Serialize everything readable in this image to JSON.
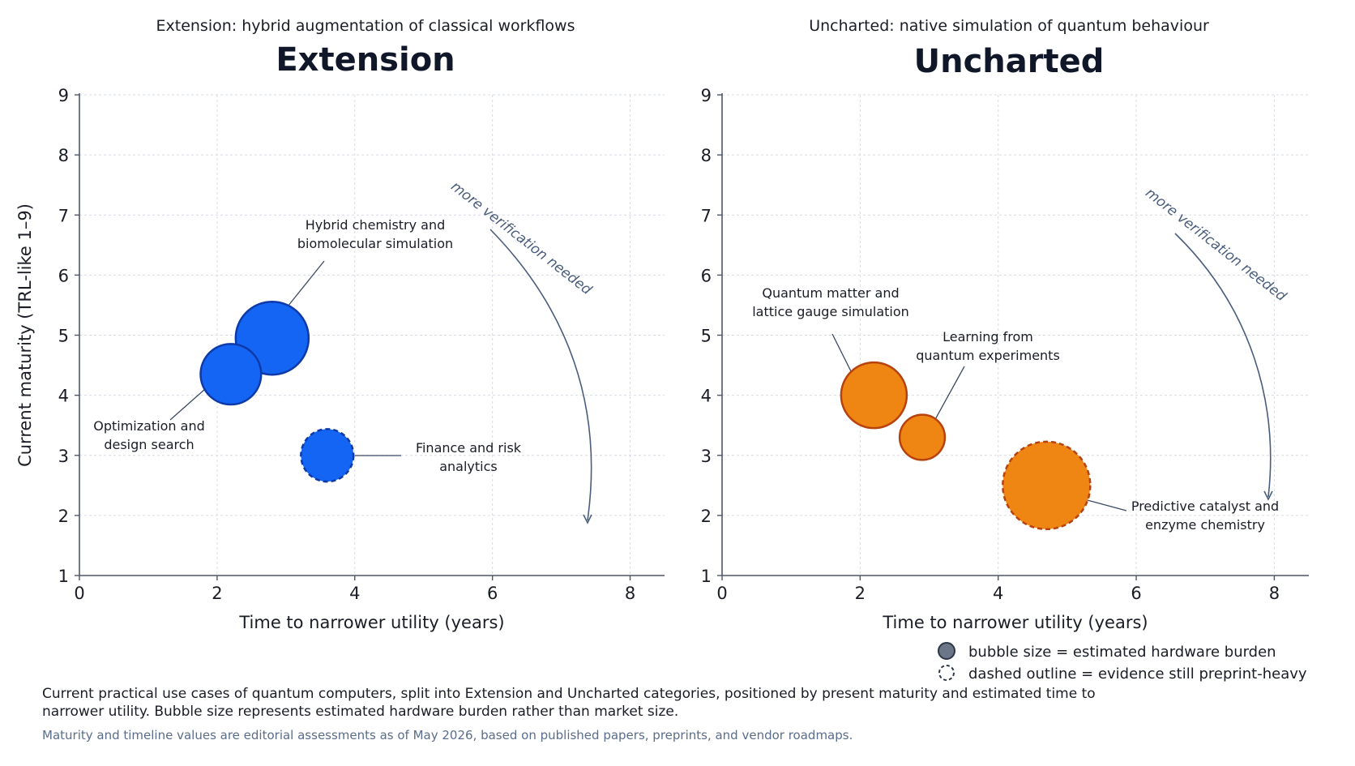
{
  "chart_data": [
    {
      "type": "scatter",
      "title": "Extension",
      "subtitle": "Extension: hybrid augmentation of classical workflows",
      "xlabel": "Time to narrower utility (years)",
      "ylabel": "Current maturity (TRL-like 1–9)",
      "xlim": [
        0,
        8.5
      ],
      "ylim": [
        1,
        9
      ],
      "xticks": [
        0,
        2,
        4,
        6,
        8
      ],
      "yticks": [
        1,
        2,
        3,
        4,
        5,
        6,
        7,
        8,
        9
      ],
      "grid": true,
      "color": "#1565f5",
      "stroke": "#0d3aa8",
      "arrow_label": "more verification needed",
      "points": [
        {
          "label": [
            "Hybrid chemistry and",
            "biomolecular simulation"
          ],
          "x": 2.8,
          "y": 4.95,
          "size": 1.0,
          "dashed": false
        },
        {
          "label": [
            "Optimization and",
            "design search"
          ],
          "x": 2.2,
          "y": 4.35,
          "size": 0.83,
          "dashed": false
        },
        {
          "label": [
            "Finance and risk",
            "analytics"
          ],
          "x": 3.6,
          "y": 3.0,
          "size": 0.72,
          "dashed": true
        }
      ]
    },
    {
      "type": "scatter",
      "title": "Uncharted",
      "subtitle": "Uncharted: native simulation of quantum behaviour",
      "xlabel": "Time to narrower utility (years)",
      "ylabel": "",
      "xlim": [
        0,
        8.5
      ],
      "ylim": [
        1,
        9
      ],
      "xticks": [
        0,
        2,
        4,
        6,
        8
      ],
      "yticks": [
        1,
        2,
        3,
        4,
        5,
        6,
        7,
        8,
        9
      ],
      "grid": true,
      "color": "#ef8512",
      "stroke": "#b8420e",
      "arrow_label": "more verification needed",
      "points": [
        {
          "label": [
            "Quantum matter and",
            "lattice gauge simulation"
          ],
          "x": 2.2,
          "y": 4.0,
          "size": 0.9,
          "dashed": false
        },
        {
          "label": [
            "Learning from",
            "quantum experiments"
          ],
          "x": 2.9,
          "y": 3.3,
          "size": 0.62,
          "dashed": false
        },
        {
          "label": [
            "Predictive catalyst and",
            "enzyme chemistry"
          ],
          "x": 4.7,
          "y": 2.5,
          "size": 1.2,
          "dashed": true
        }
      ]
    }
  ],
  "legend": {
    "size_label": "bubble size = estimated hardware burden",
    "dashed_label": "dashed outline = evidence still preprint-heavy"
  },
  "caption": "Current practical use cases of quantum computers, split into Extension and Uncharted categories, positioned by present maturity and estimated time to narrower utility. Bubble size represents estimated hardware burden rather than market size.",
  "note": "Maturity and timeline values are editorial assessments as of May 2026, based on published papers, preprints, and vendor roadmaps."
}
